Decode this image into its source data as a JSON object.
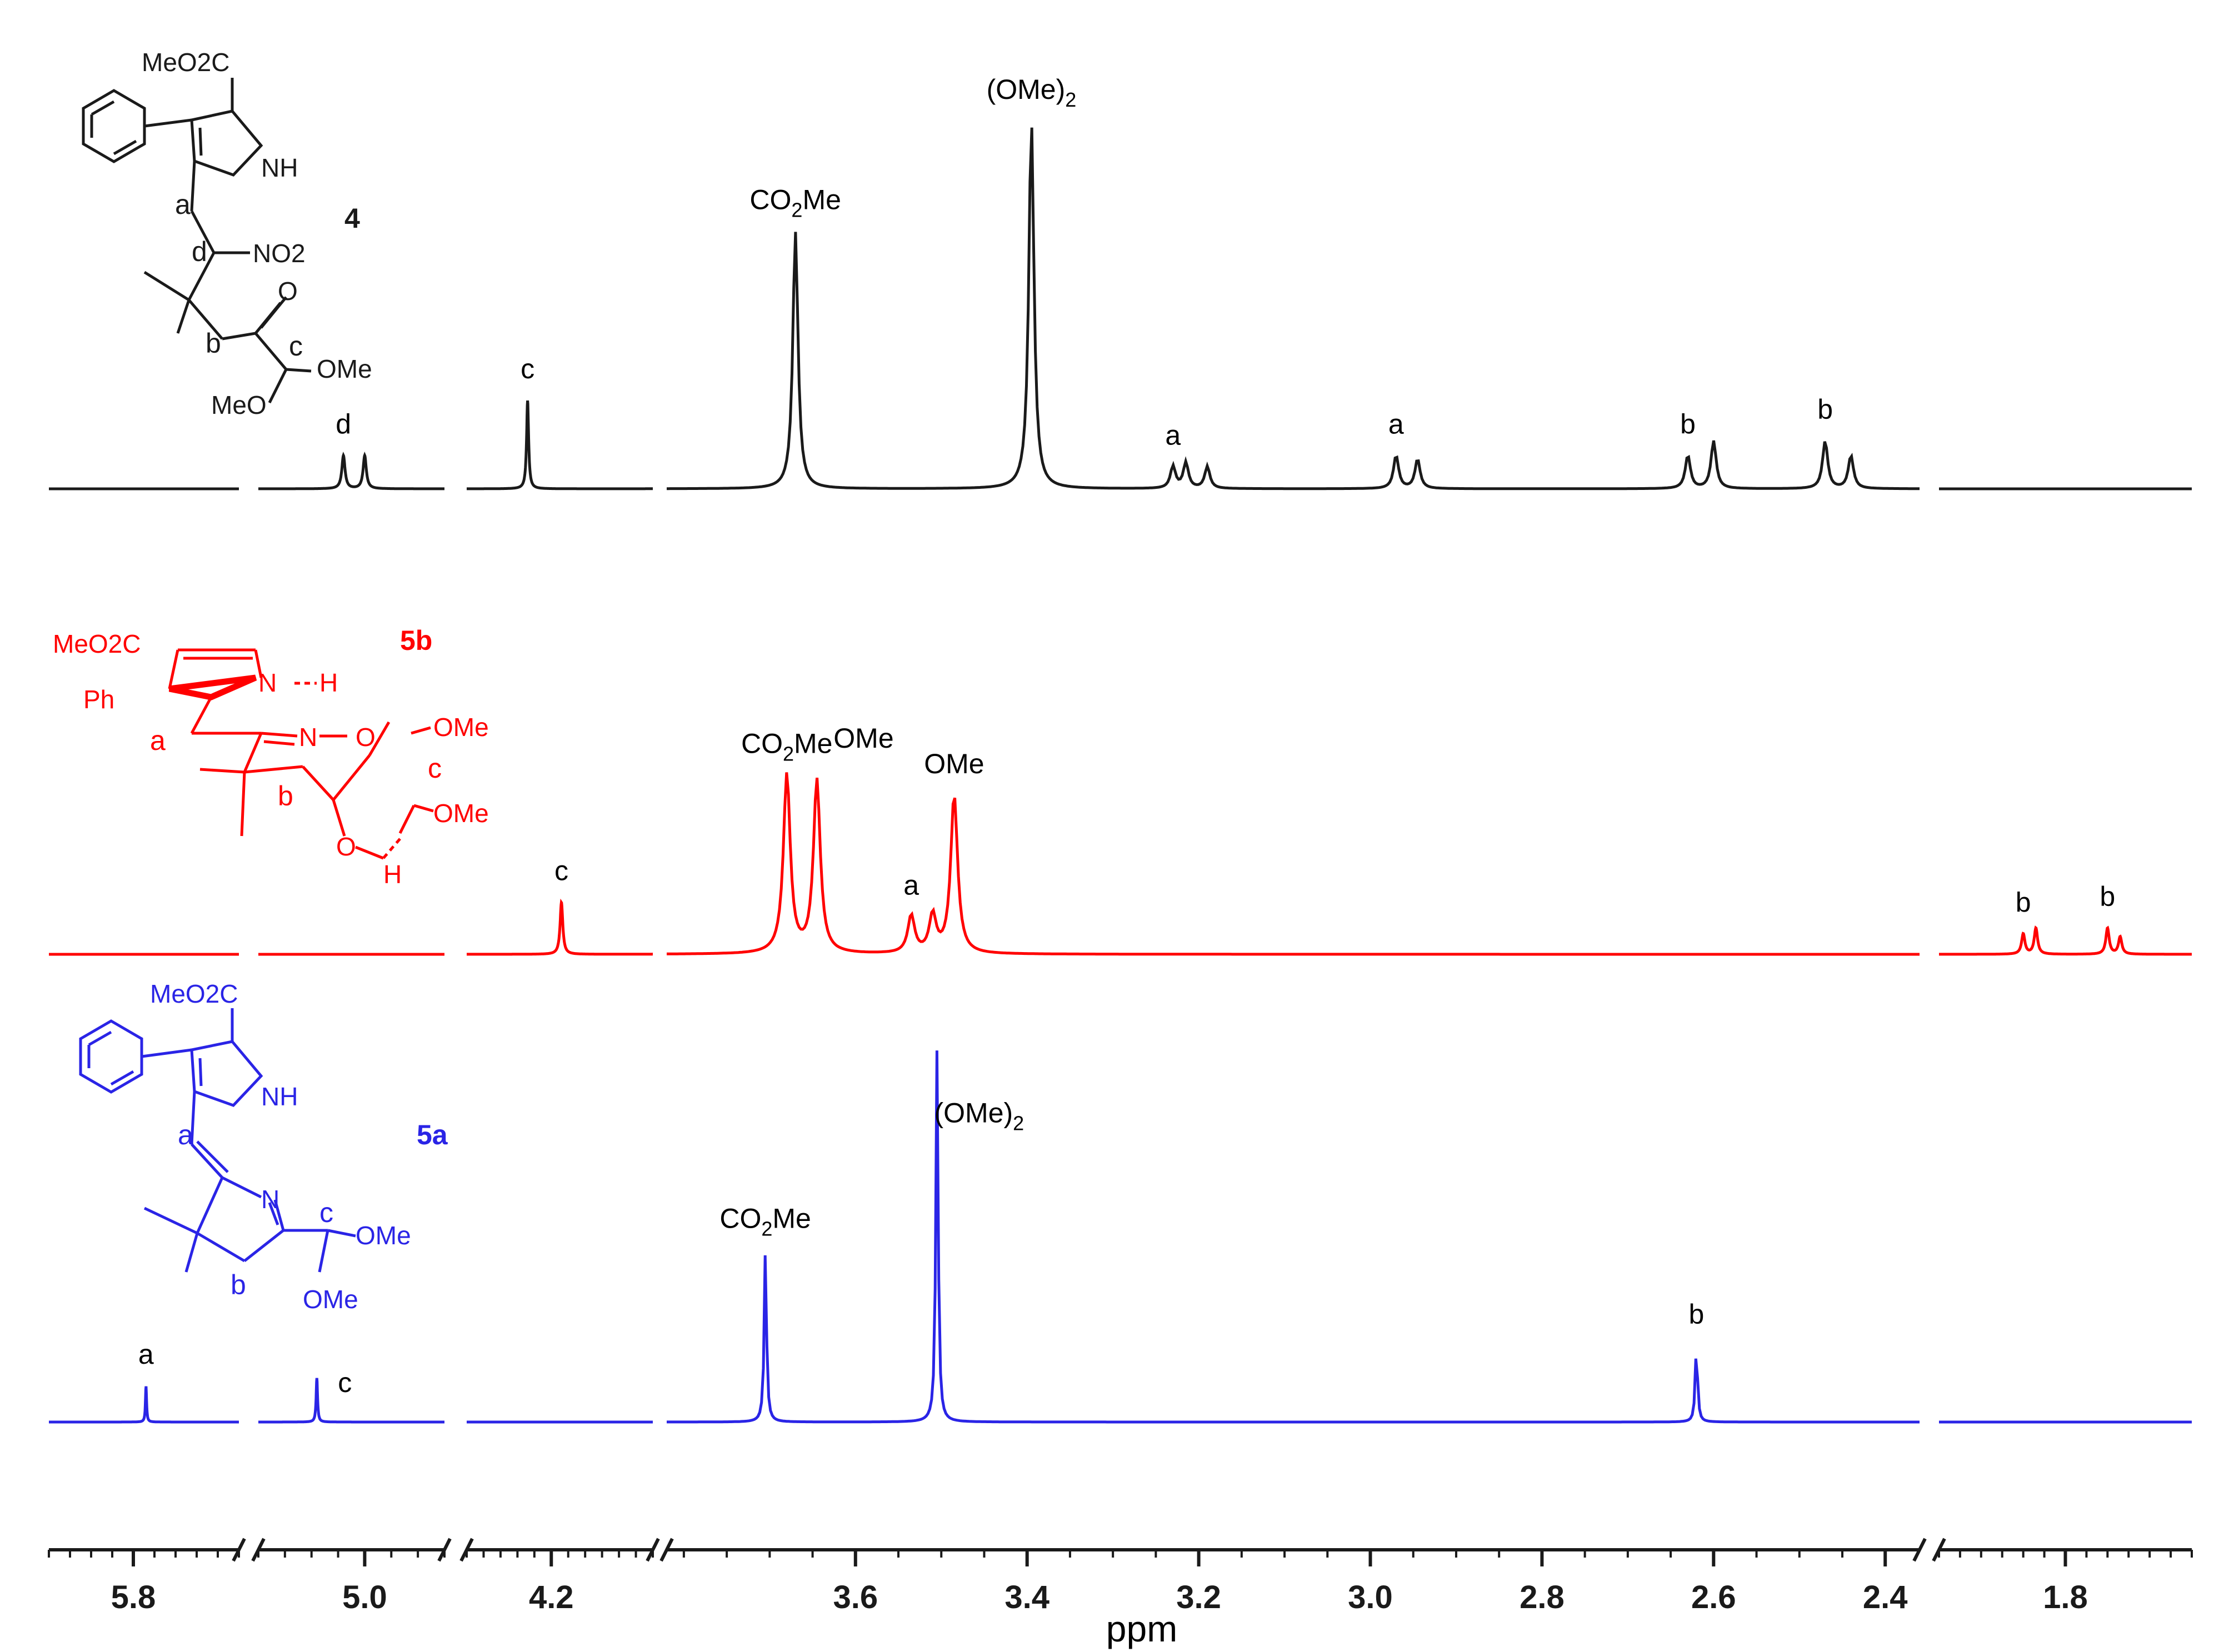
{
  "chart_data": {
    "type": "line",
    "xlabel": "ppm",
    "x_reversed": true,
    "x_ticks": [
      "5.8",
      "5.0",
      "4.2",
      "3.6",
      "3.4",
      "3.2",
      "3.0",
      "2.8",
      "2.6",
      "2.4",
      "1.8"
    ],
    "axis_breaks": [
      {
        "between": [
          "5.8",
          "5.0"
        ]
      },
      {
        "between": [
          "5.0",
          "4.2"
        ]
      },
      {
        "between": [
          "4.2",
          "3.6"
        ]
      },
      {
        "between": [
          "2.4",
          "1.8"
        ]
      }
    ],
    "series": [
      {
        "name": "4",
        "color": "#1a1a1a",
        "peaks": [
          {
            "ppm": 5.04,
            "height": 0.09,
            "label": "d"
          },
          {
            "ppm": 5.0,
            "height": 0.09
          },
          {
            "ppm": 4.27,
            "height": 0.24,
            "label": "c"
          },
          {
            "ppm": 3.67,
            "height": 0.7,
            "label": "CO2Me"
          },
          {
            "ppm": 3.395,
            "height": 1.0,
            "label": "(OMe)2"
          },
          {
            "ppm": 3.23,
            "height": 0.06,
            "label": "a"
          },
          {
            "ppm": 3.215,
            "height": 0.07
          },
          {
            "ppm": 3.19,
            "height": 0.06
          },
          {
            "ppm": 2.97,
            "height": 0.09,
            "label": "a"
          },
          {
            "ppm": 2.945,
            "height": 0.08
          },
          {
            "ppm": 2.63,
            "height": 0.09,
            "label": "b"
          },
          {
            "ppm": 2.6,
            "height": 0.13
          },
          {
            "ppm": 2.47,
            "height": 0.13,
            "label": "b"
          },
          {
            "ppm": 2.44,
            "height": 0.09
          }
        ]
      },
      {
        "name": "5b",
        "color": "#ff0000",
        "peaks": [
          {
            "ppm": 4.17,
            "height": 0.18,
            "label": "c"
          },
          {
            "ppm": 3.68,
            "height": 0.62,
            "label": "CO2Me"
          },
          {
            "ppm": 3.645,
            "height": 0.6,
            "label": "OMe"
          },
          {
            "ppm": 3.535,
            "height": 0.13,
            "label": "a"
          },
          {
            "ppm": 3.51,
            "height": 0.13
          },
          {
            "ppm": 3.485,
            "height": 0.55,
            "label": "OMe"
          },
          {
            "ppm": 1.9,
            "height": 0.07,
            "label": "b"
          },
          {
            "ppm": 1.87,
            "height": 0.09
          },
          {
            "ppm": 1.7,
            "height": 0.09,
            "label": "b"
          },
          {
            "ppm": 1.67,
            "height": 0.06
          }
        ]
      },
      {
        "name": "5a",
        "color": "#2a24e6",
        "peaks": [
          {
            "ppm": 5.77,
            "height": 0.09,
            "label": "a"
          },
          {
            "ppm": 5.09,
            "height": 0.11,
            "label": "c"
          },
          {
            "ppm": 3.705,
            "height": 0.43,
            "label": "CO2Me"
          },
          {
            "ppm": 3.505,
            "height": 0.93,
            "label": "(OMe)2"
          },
          {
            "ppm": 2.62,
            "height": 0.19,
            "label": "b"
          }
        ]
      }
    ],
    "structures": {
      "compound_4": {
        "number": "4",
        "labels": [
          "MeO2C",
          "NH",
          "a",
          "d",
          "NO2",
          "b",
          "c",
          "O",
          "OMe",
          "MeO"
        ]
      },
      "compound_5b": {
        "number": "5b",
        "labels": [
          "MeO2C",
          "Ph",
          "N",
          "H",
          "a",
          "N",
          "O",
          "OMe",
          "c",
          "b",
          "OMe",
          "O",
          "H"
        ]
      },
      "compound_5a": {
        "number": "5a",
        "labels": [
          "MeO2C",
          "NH",
          "a",
          "N",
          "c",
          "OMe",
          "b",
          "OMe"
        ]
      }
    }
  }
}
